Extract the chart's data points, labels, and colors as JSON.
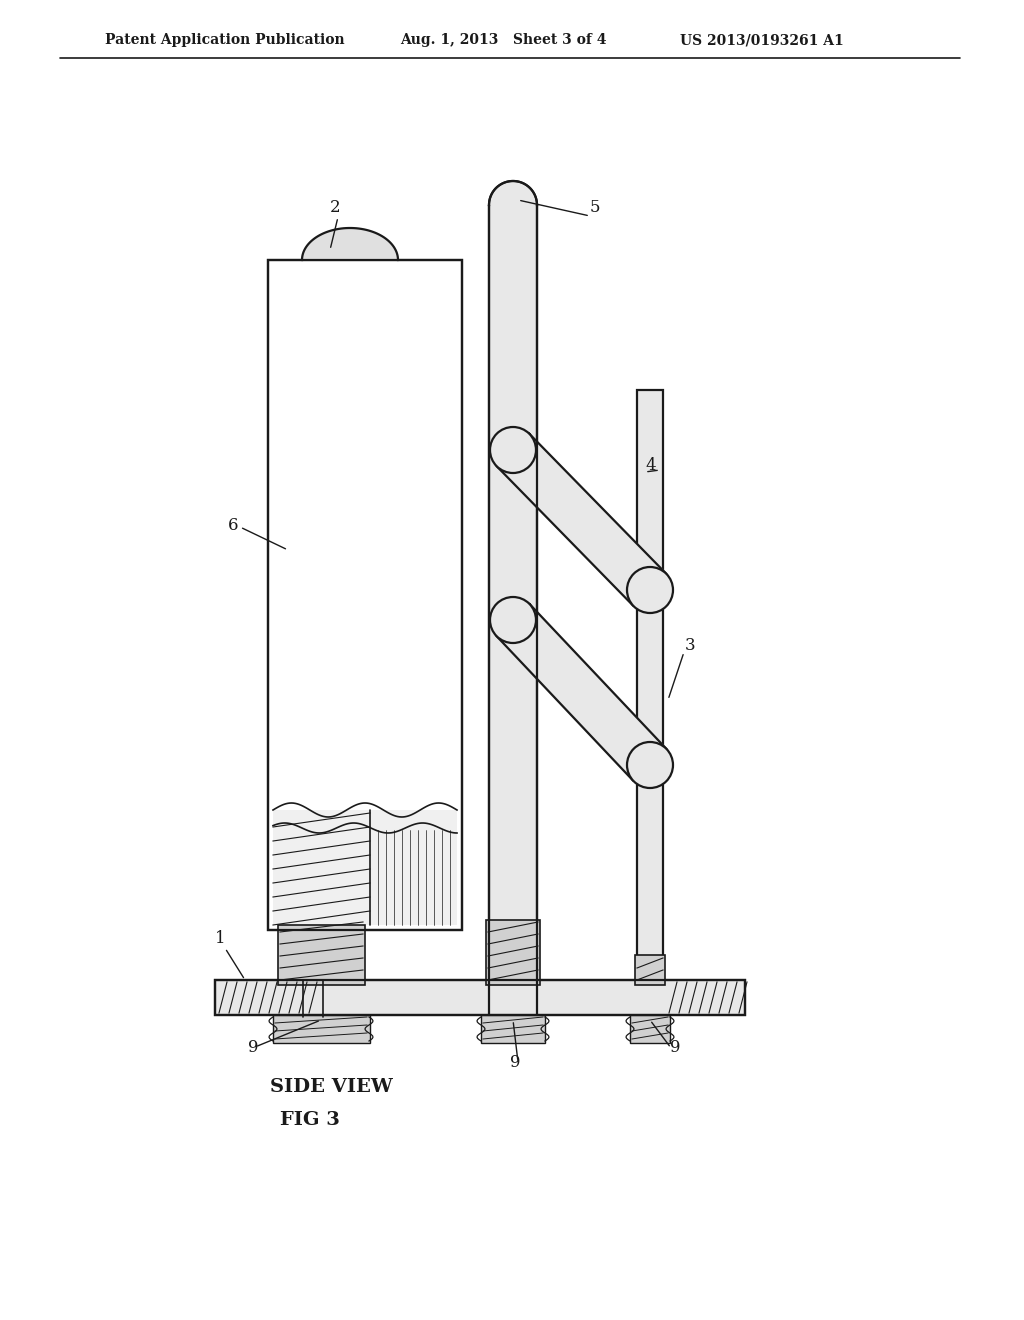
{
  "bg_color": "#ffffff",
  "line_color": "#1a1a1a",
  "header_text1": "Patent Application Publication",
  "header_text2": "Aug. 1, 2013   Sheet 3 of 4",
  "header_text3": "US 2013/0193261 A1",
  "caption_line1": "SIDE VIEW",
  "caption_line2": "FIG 3",
  "label_2": "2",
  "label_3": "3",
  "label_4": "4",
  "label_5": "5",
  "label_6": "6",
  "label_1": "1",
  "label_9a": "9",
  "label_9b": "9",
  "label_9c": "9"
}
